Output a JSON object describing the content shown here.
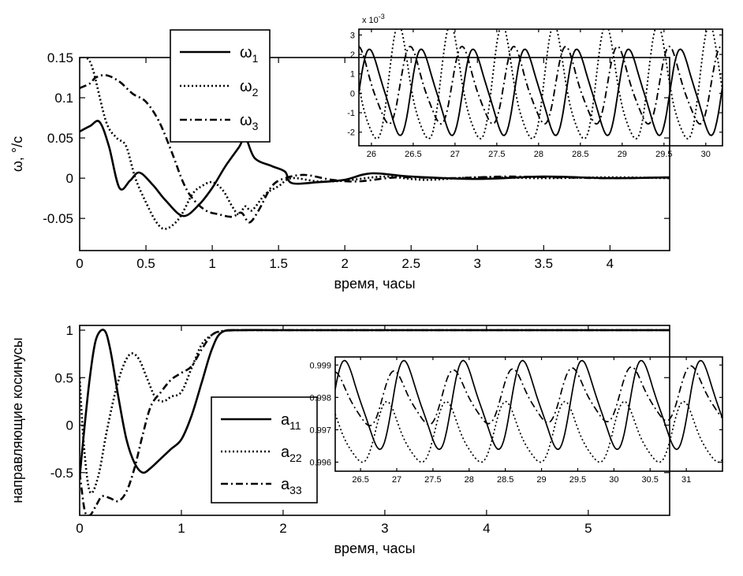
{
  "chart_data": [
    {
      "id": "omega",
      "type": "line",
      "xlabel": "время, часы",
      "ylabel": "ω, °/c",
      "xlim": [
        0,
        4.45
      ],
      "ylim": [
        -0.09,
        0.15
      ],
      "xticks": [
        "0",
        "0.5",
        "1",
        "1.5",
        "2",
        "2.5",
        "3",
        "3.5",
        "4"
      ],
      "yticks": [
        "0.15",
        "0.1",
        "0.05",
        "0",
        "-0.05"
      ],
      "legend_position": "top-center",
      "series": [
        {
          "name": "ω",
          "subscript": "1",
          "style": "solid",
          "x": [
            0,
            0.08,
            0.15,
            0.22,
            0.3,
            0.38,
            0.45,
            0.55,
            0.65,
            0.78,
            0.9,
            1.0,
            1.1,
            1.2,
            1.25,
            1.32,
            1.45,
            1.55,
            1.6,
            1.8,
            2.0,
            2.2,
            2.5,
            3.0,
            3.5,
            4.0,
            4.45
          ],
          "values": [
            0.058,
            0.065,
            0.07,
            0.04,
            -0.012,
            -0.003,
            0.007,
            -0.008,
            -0.028,
            -0.047,
            -0.033,
            -0.012,
            0.015,
            0.038,
            0.05,
            0.025,
            0.015,
            0.008,
            -0.006,
            -0.005,
            -0.002,
            0.006,
            0.002,
            -0.001,
            0.002,
            0.0,
            0.001
          ]
        },
        {
          "name": "ω",
          "subscript": "2",
          "style": "dotted",
          "x": [
            0,
            0.05,
            0.1,
            0.2,
            0.28,
            0.35,
            0.42,
            0.5,
            0.58,
            0.65,
            0.75,
            0.85,
            0.92,
            1.0,
            1.08,
            1.15,
            1.2,
            1.25,
            1.3,
            1.4,
            1.5,
            1.6,
            1.8,
            2.0,
            2.3,
            2.6,
            3.0,
            3.5,
            4.0,
            4.45
          ],
          "values": [
            0.15,
            0.15,
            0.135,
            0.07,
            0.05,
            0.04,
            0.0,
            -0.03,
            -0.055,
            -0.063,
            -0.05,
            -0.02,
            -0.01,
            -0.005,
            -0.015,
            -0.035,
            -0.045,
            -0.035,
            -0.04,
            -0.02,
            -0.01,
            0.0,
            -0.004,
            -0.003,
            0.002,
            -0.002,
            0.001,
            0.0,
            0.001,
            0.0
          ]
        },
        {
          "name": "ω",
          "subscript": "3",
          "style": "dashdot",
          "x": [
            0,
            0.08,
            0.12,
            0.2,
            0.3,
            0.4,
            0.5,
            0.6,
            0.7,
            0.78,
            0.85,
            0.95,
            1.05,
            1.15,
            1.22,
            1.28,
            1.35,
            1.45,
            1.55,
            1.7,
            1.9,
            2.1,
            2.4,
            2.8,
            3.2,
            3.6,
            4.0,
            4.45
          ],
          "values": [
            0.112,
            0.118,
            0.125,
            0.128,
            0.12,
            0.105,
            0.095,
            0.07,
            0.03,
            -0.005,
            -0.025,
            -0.04,
            -0.045,
            -0.048,
            -0.043,
            -0.055,
            -0.04,
            -0.01,
            0.0,
            0.004,
            -0.002,
            -0.004,
            0.001,
            0.0,
            0.002,
            0.001,
            0.0,
            0.001
          ]
        }
      ]
    },
    {
      "id": "omega-zoom",
      "type": "line",
      "inset": true,
      "exponent_label": "x 10",
      "exponent_power": "-3",
      "xlim": [
        25.85,
        30.2
      ],
      "ylim": [
        -2.7,
        3.3
      ],
      "xticks": [
        "26",
        "26.5",
        "27",
        "27.5",
        "28",
        "28.5",
        "29",
        "29.5",
        "30"
      ],
      "yticks": [
        "3",
        "2",
        "1",
        "0",
        "-1",
        "-2"
      ],
      "series": [
        {
          "style": "solid",
          "period": 0.62,
          "amplitude": 2.1,
          "phase": 0.0,
          "offset": 0.05
        },
        {
          "style": "dotted",
          "period": 0.62,
          "amplitude": 2.85,
          "phase": 2.9,
          "offset": 0.25
        },
        {
          "style": "dashdot",
          "period": 0.62,
          "amplitude": 1.9,
          "phase": 1.4,
          "offset": 0.3
        }
      ]
    },
    {
      "id": "cosines",
      "type": "line",
      "xlabel": "время, часы",
      "ylabel": "направляющие косинусы",
      "xlim": [
        0,
        5.8
      ],
      "ylim": [
        -0.95,
        1.05
      ],
      "xticks": [
        "0",
        "1",
        "2",
        "3",
        "4",
        "5"
      ],
      "yticks": [
        "1",
        "0.5",
        "0",
        "-0.5"
      ],
      "legend_position": "center",
      "series": [
        {
          "name": "a",
          "subscript": "11",
          "style": "solid",
          "x": [
            0,
            0.04,
            0.1,
            0.16,
            0.24,
            0.3,
            0.38,
            0.46,
            0.54,
            0.62,
            0.7,
            0.8,
            0.9,
            1.0,
            1.1,
            1.2,
            1.3,
            1.4,
            1.6,
            2.0,
            3.0,
            4.0,
            5.8
          ],
          "values": [
            -0.55,
            -0.1,
            0.5,
            0.9,
            1.0,
            0.8,
            0.3,
            -0.15,
            -0.4,
            -0.5,
            -0.45,
            -0.35,
            -0.25,
            -0.15,
            0.1,
            0.45,
            0.8,
            0.98,
            1.0,
            1.0,
            1.0,
            1.0,
            1.0
          ]
        },
        {
          "name": "a",
          "subscript": "22",
          "style": "dotted",
          "x": [
            0,
            0.04,
            0.1,
            0.18,
            0.26,
            0.34,
            0.42,
            0.5,
            0.58,
            0.66,
            0.74,
            0.82,
            0.9,
            1.0,
            1.1,
            1.2,
            1.3,
            1.4,
            1.6,
            2.0,
            3.0,
            4.0,
            5.8
          ],
          "values": [
            0.5,
            -0.2,
            -0.7,
            -0.55,
            -0.1,
            0.3,
            0.6,
            0.75,
            0.7,
            0.5,
            0.3,
            0.25,
            0.3,
            0.35,
            0.6,
            0.85,
            0.95,
            0.99,
            1.0,
            1.0,
            1.0,
            1.0,
            1.0
          ]
        },
        {
          "name": "a",
          "subscript": "33",
          "style": "dashdot",
          "x": [
            0,
            0.05,
            0.1,
            0.16,
            0.22,
            0.3,
            0.38,
            0.46,
            0.54,
            0.62,
            0.7,
            0.8,
            0.9,
            1.0,
            1.1,
            1.2,
            1.3,
            1.4,
            1.6,
            2.0,
            3.0,
            4.0,
            5.8
          ],
          "values": [
            -0.5,
            -0.9,
            -0.95,
            -0.85,
            -0.75,
            -0.77,
            -0.8,
            -0.7,
            -0.45,
            -0.1,
            0.2,
            0.35,
            0.48,
            0.55,
            0.62,
            0.8,
            0.95,
            0.99,
            1.0,
            1.0,
            1.0,
            1.0,
            1.0
          ]
        }
      ]
    },
    {
      "id": "cosines-zoom",
      "type": "line",
      "inset": true,
      "xlim": [
        26.15,
        31.5
      ],
      "ylim": [
        0.99572,
        0.99925
      ],
      "xticks": [
        "26.5",
        "27",
        "27.5",
        "28",
        "28.5",
        "29",
        "29.5",
        "30",
        "30.5",
        "31"
      ],
      "yticks": [
        "0.999",
        "0.998",
        "0.997",
        "0.996"
      ],
      "series": [
        {
          "style": "solid",
          "period": 0.82,
          "amplitude": 0.0013,
          "phase": 0.3,
          "offset": 0.99775
        },
        {
          "style": "dotted",
          "period": 0.82,
          "amplitude": 0.0009,
          "phase": 2.2,
          "offset": 0.99685
        },
        {
          "style": "dashdot",
          "period": 0.82,
          "amplitude": 0.0008,
          "phase": 1.4,
          "offset": 0.9979,
          "trend": 0.0002
        }
      ]
    }
  ]
}
